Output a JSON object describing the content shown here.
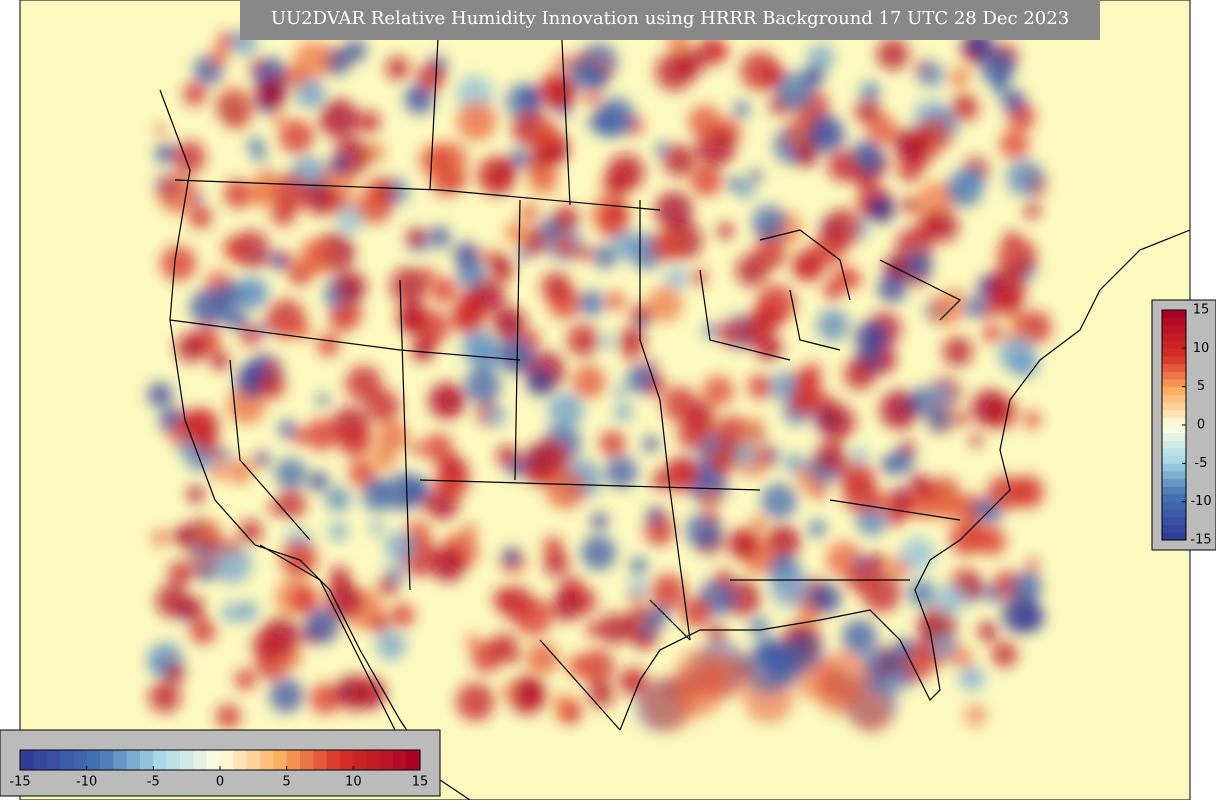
{
  "title": "UU2DVAR Relative Humidity Innovation using HRRR Background 17 UTC 28 Dec 2023",
  "colorbar": {
    "limits": [
      -15,
      15
    ],
    "ticks": [
      -15,
      -10,
      -5,
      0,
      5,
      10,
      15
    ]
  }
}
